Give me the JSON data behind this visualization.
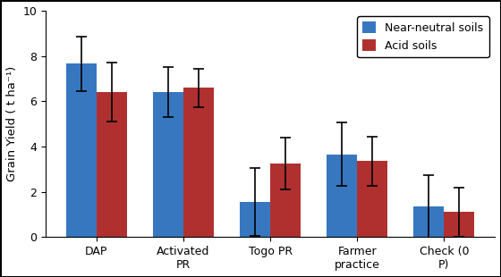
{
  "categories": [
    "DAP",
    "Activated\nPR",
    "Togo PR",
    "Farmer\npractice",
    "Check (0\nP)"
  ],
  "near_neutral_values": [
    7.65,
    6.4,
    1.55,
    3.65,
    1.35
  ],
  "acid_values": [
    6.4,
    6.6,
    3.25,
    3.35,
    1.1
  ],
  "near_neutral_errors": [
    1.2,
    1.1,
    1.5,
    1.4,
    1.4
  ],
  "acid_errors": [
    1.3,
    0.85,
    1.15,
    1.1,
    1.1
  ],
  "near_neutral_color": "#3777c0",
  "acid_color": "#b03030",
  "ylabel": "Grain Yield ( t ha⁻¹)",
  "ylim": [
    0,
    10
  ],
  "yticks": [
    0,
    2,
    4,
    6,
    8,
    10
  ],
  "legend_labels": [
    "Near-neutral soils",
    "Acid soils"
  ],
  "bar_width": 0.35,
  "figure_width": 5.6,
  "figure_height": 3.1,
  "dpi": 100
}
